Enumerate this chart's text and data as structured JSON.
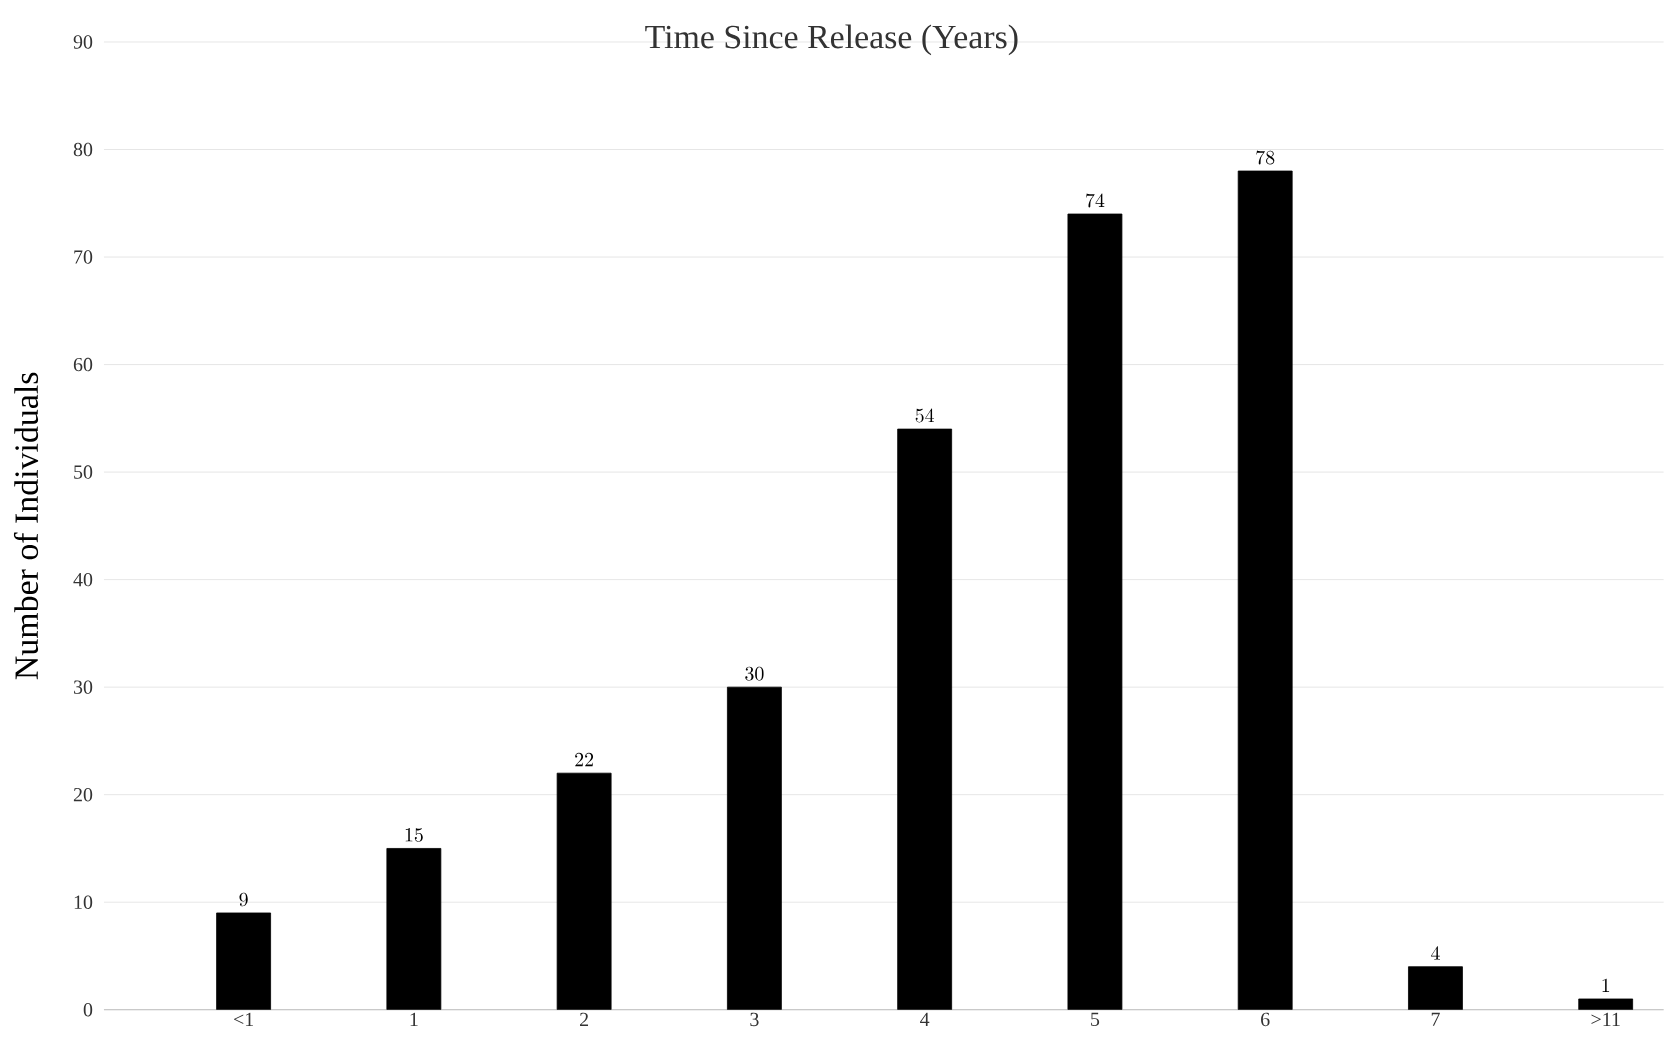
{
  "chart_data": {
    "type": "bar",
    "title": "Time Since Release (Years)",
    "ylabel": "Number of Individuals",
    "categories": [
      "<1",
      "1",
      "2",
      "3",
      "4",
      "5",
      "6",
      "7",
      ">11"
    ],
    "values": [
      9,
      15,
      22,
      30,
      54,
      74,
      78,
      4,
      1
    ],
    "color": "#000000",
    "ylim": [
      0,
      90
    ],
    "yticks": [
      0,
      10,
      20,
      30,
      40,
      50,
      60,
      70,
      80,
      90
    ],
    "grid": "y",
    "data_labels": true
  }
}
